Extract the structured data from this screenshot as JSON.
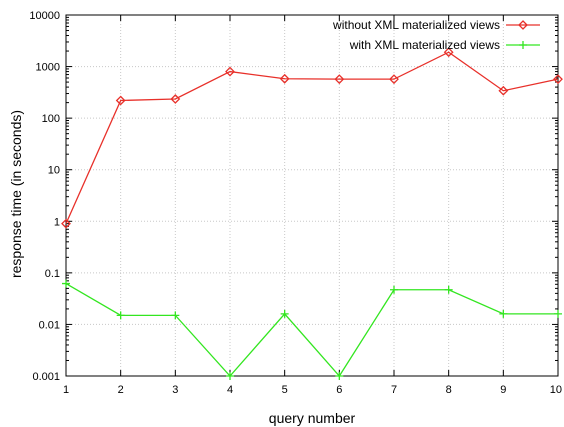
{
  "chart_data": {
    "type": "line",
    "title": "",
    "xlabel": "query number",
    "ylabel": "response time (in seconds)",
    "x": [
      1,
      2,
      3,
      4,
      5,
      6,
      7,
      8,
      9,
      10
    ],
    "x_ticks": [
      "1",
      "2",
      "3",
      "4",
      "5",
      "6",
      "7",
      "8",
      "9",
      "10"
    ],
    "y_scale": "log",
    "ylim": [
      0.001,
      10000
    ],
    "y_ticks": [
      0.001,
      0.01,
      0.1,
      1,
      10,
      100,
      1000,
      10000
    ],
    "y_tick_labels": [
      "0.001",
      "0.01",
      "0.1",
      "1",
      "10",
      "100",
      "1000",
      "10000"
    ],
    "grid": true,
    "legend_position": "top-right",
    "series": [
      {
        "name": "without XML materialized views",
        "color": "#e8302a",
        "marker": "diamond",
        "values": [
          0.9,
          220,
          235,
          800,
          580,
          570,
          570,
          1900,
          340,
          570
        ]
      },
      {
        "name": "with XML materialized views",
        "color": "#33e620",
        "marker": "plus",
        "values": [
          0.062,
          0.015,
          0.015,
          0.001,
          0.016,
          0.001,
          0.047,
          0.047,
          0.016,
          0.016
        ]
      }
    ]
  }
}
